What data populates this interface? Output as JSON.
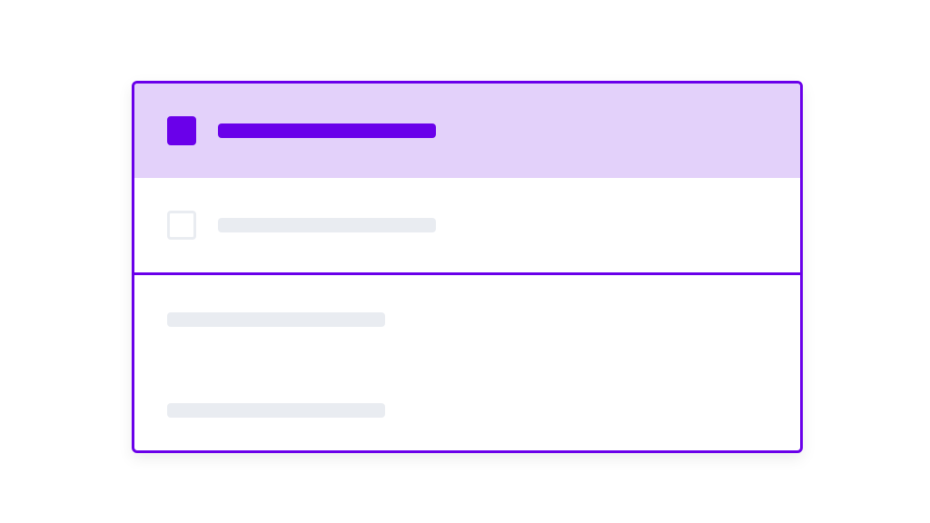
{
  "colors": {
    "accent": "#6a00ea",
    "selected_row_bg": "#e3d1fa",
    "placeholder": "#e9ecf1"
  },
  "list": {
    "options": [
      {
        "checked": true,
        "selected": true
      },
      {
        "checked": false,
        "selected": false
      }
    ]
  },
  "details": {
    "placeholder_lines": 2
  }
}
